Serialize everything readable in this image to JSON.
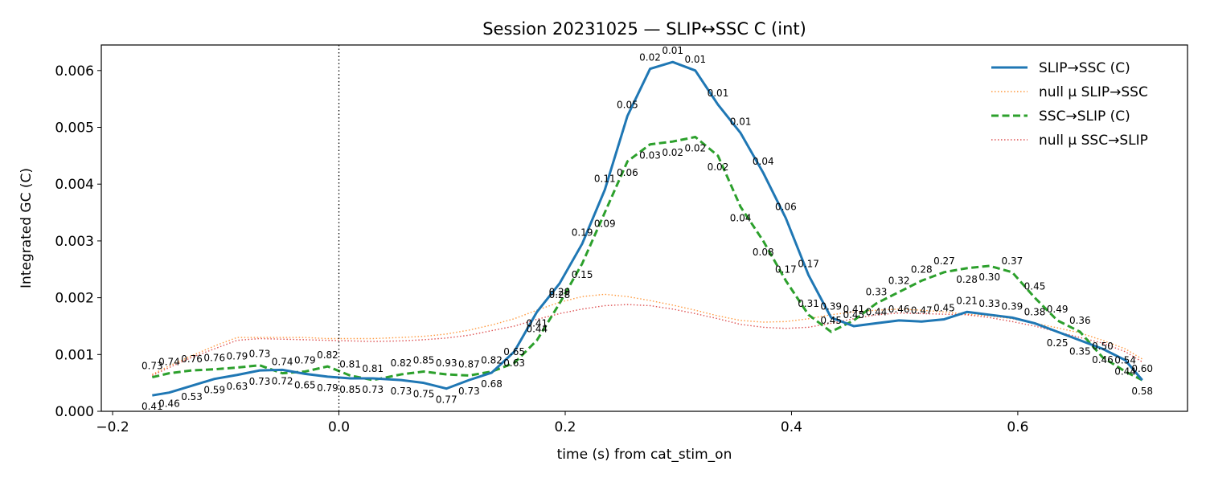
{
  "chart_data": {
    "type": "line",
    "title": "Session 20231025 — SLIP↔SSC C (int)",
    "xlabel": "time (s) from cat_stim_on",
    "ylabel": "Integrated GC (C)",
    "xlim": [
      -0.21,
      0.75
    ],
    "ylim": [
      0,
      0.00645
    ],
    "xticks": [
      -0.2,
      0.0,
      0.2,
      0.4,
      0.6
    ],
    "xtick_labels": [
      "−0.2",
      "0.0",
      "0.2",
      "0.4",
      "0.6"
    ],
    "yticks": [
      0,
      0.001,
      0.002,
      0.003,
      0.004,
      0.005,
      0.006
    ],
    "ytick_labels": [
      "0.000",
      "0.001",
      "0.002",
      "0.003",
      "0.004",
      "0.005",
      "0.006"
    ],
    "vline_x": 0.0,
    "legend_position": "top-right",
    "x": [
      -0.165,
      -0.15,
      -0.13,
      -0.11,
      -0.09,
      -0.07,
      -0.05,
      -0.03,
      -0.01,
      0.01,
      0.03,
      0.055,
      0.075,
      0.095,
      0.115,
      0.135,
      0.155,
      0.175,
      0.195,
      0.215,
      0.235,
      0.255,
      0.275,
      0.295,
      0.315,
      0.335,
      0.355,
      0.375,
      0.395,
      0.415,
      0.435,
      0.455,
      0.475,
      0.495,
      0.515,
      0.535,
      0.555,
      0.575,
      0.595,
      0.615,
      0.635,
      0.655,
      0.675,
      0.695,
      0.71
    ],
    "series": [
      {
        "name": "SLIP→SSC (C)",
        "color": "#1f77b4",
        "style": "solid",
        "values": [
          0.00028,
          0.00033,
          0.00045,
          0.00057,
          0.00064,
          0.00072,
          0.00073,
          0.00066,
          0.00061,
          0.00058,
          0.00058,
          0.00055,
          0.0005,
          0.0004,
          0.00055,
          0.00068,
          0.00105,
          0.00175,
          0.00225,
          0.00295,
          0.0039,
          0.0052,
          0.00603,
          0.00615,
          0.006,
          0.0054,
          0.0049,
          0.0042,
          0.0034,
          0.0024,
          0.00165,
          0.0015,
          0.00155,
          0.0016,
          0.00158,
          0.00162,
          0.00175,
          0.0017,
          0.00165,
          0.00155,
          0.0014,
          0.00125,
          0.0011,
          0.0009,
          0.00055
        ],
        "labels": [
          "0.41",
          "0.46",
          "0.53",
          "0.59",
          "0.63",
          "0.73",
          "0.72",
          "0.65",
          "0.79",
          "0.85",
          "0.73",
          "0.73",
          "0.75",
          "0.77",
          "0.73",
          "0.68",
          "0.63",
          "0.41",
          "0.28",
          "0.19",
          "0.11",
          "0.05",
          "0.02",
          "0.01",
          "0.01",
          "0.01",
          "0.01",
          "0.04",
          "0.06",
          "0.17",
          "0.39",
          "0.45",
          "0.44",
          "0.46",
          "0.47",
          "0.45",
          "0.21",
          "0.33",
          "0.39",
          "0.38",
          "0.25",
          "0.35",
          "0.46",
          "0.44",
          "0.58"
        ]
      },
      {
        "name": "null μ SLIP→SSC",
        "color": "#ff7f0e",
        "style": "dotted",
        "values": [
          0.00065,
          0.0008,
          0.00098,
          0.00115,
          0.0013,
          0.0013,
          0.0013,
          0.0013,
          0.00128,
          0.00128,
          0.00128,
          0.0013,
          0.00132,
          0.00136,
          0.00143,
          0.00152,
          0.00163,
          0.00178,
          0.00192,
          0.00202,
          0.00206,
          0.00202,
          0.00195,
          0.00187,
          0.00178,
          0.00168,
          0.0016,
          0.00157,
          0.00158,
          0.00163,
          0.0017,
          0.00175,
          0.00178,
          0.0018,
          0.00178,
          0.00175,
          0.00171,
          0.00168,
          0.00163,
          0.00155,
          0.00147,
          0.00138,
          0.00125,
          0.0011,
          0.00092
        ]
      },
      {
        "name": "SSC→SLIP (C)",
        "color": "#2ca02c",
        "style": "dashed",
        "values": [
          0.0006,
          0.00067,
          0.00072,
          0.00074,
          0.00077,
          0.00081,
          0.00067,
          0.0007,
          0.00079,
          0.00063,
          0.00055,
          0.00065,
          0.0007,
          0.00065,
          0.00063,
          0.0007,
          0.00085,
          0.00125,
          0.0019,
          0.0026,
          0.0035,
          0.0044,
          0.0047,
          0.00475,
          0.00483,
          0.0045,
          0.0036,
          0.003,
          0.0023,
          0.0017,
          0.0014,
          0.0016,
          0.0019,
          0.0021,
          0.0023,
          0.00245,
          0.00252,
          0.00256,
          0.00245,
          0.002,
          0.0016,
          0.0014,
          0.00095,
          0.0007,
          0.00055
        ],
        "labels": [
          "0.73",
          "0.74",
          "0.76",
          "0.76",
          "0.79",
          "0.73",
          "0.74",
          "0.79",
          "0.82",
          "0.81",
          "0.81",
          "0.82",
          "0.85",
          "0.93",
          "0.87",
          "0.82",
          "0.65",
          "0.44",
          "0.29",
          "0.15",
          "0.09",
          "0.06",
          "0.03",
          "0.02",
          "0.02",
          "0.02",
          "0.04",
          "0.08",
          "0.17",
          "0.31",
          "0.45",
          "0.41",
          "0.33",
          "0.32",
          "0.28",
          "0.27",
          "0.28",
          "0.30",
          "0.37",
          "0.45",
          "0.49",
          "0.36",
          "0.50",
          "0.54",
          "0.60"
        ]
      },
      {
        "name": "null μ SSC→SLIP",
        "color": "#d62728",
        "style": "dotted",
        "values": [
          0.00063,
          0.00077,
          0.00095,
          0.0011,
          0.00125,
          0.00128,
          0.00127,
          0.00126,
          0.00125,
          0.00124,
          0.00123,
          0.00124,
          0.00126,
          0.00129,
          0.00134,
          0.00142,
          0.0015,
          0.00162,
          0.00172,
          0.0018,
          0.00186,
          0.00188,
          0.00186,
          0.0018,
          0.00172,
          0.00163,
          0.00153,
          0.00148,
          0.00146,
          0.00148,
          0.00155,
          0.00163,
          0.0017,
          0.00173,
          0.00172,
          0.00171,
          0.0017,
          0.00165,
          0.00158,
          0.0015,
          0.0014,
          0.0013,
          0.0012,
          0.00105,
          0.00087
        ]
      }
    ]
  }
}
